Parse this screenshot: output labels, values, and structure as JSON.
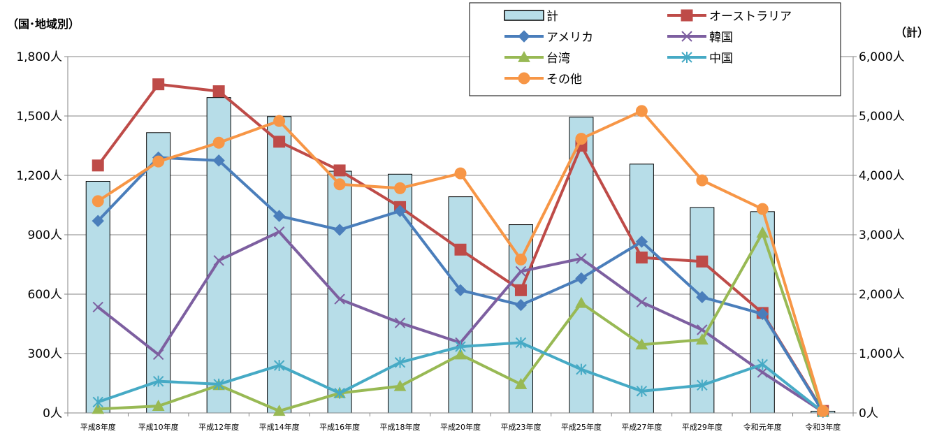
{
  "chart_data": {
    "type": "bar+line",
    "categories": [
      "平成8年度",
      "平成10年度",
      "平成12年度",
      "平成14年度",
      "平成16年度",
      "平成18年度",
      "平成20年度",
      "平成23年度",
      "平成25年度",
      "平成27年度",
      "平成29年度",
      "令和元年度",
      "令和3年度"
    ],
    "left_axis": {
      "title": "（国･地域別）",
      "ylim": [
        0,
        1800
      ],
      "ticks": [
        0,
        300,
        600,
        900,
        1200,
        1500,
        1800
      ],
      "tick_labels": [
        "0人",
        "300人",
        "600人",
        "900人",
        "1,200人",
        "1,500人",
        "1,800人"
      ]
    },
    "right_axis": {
      "title": "（計）",
      "ylim": [
        0,
        6000
      ],
      "ticks": [
        0,
        1000,
        2000,
        3000,
        4000,
        5000,
        6000
      ],
      "tick_labels": [
        "0人",
        "1,000人",
        "2,000人",
        "3,000人",
        "4,000人",
        "5,000人",
        "6,000人"
      ]
    },
    "bar_series": {
      "name": "計",
      "axis": "right",
      "color": "#b7dde8",
      "values": [
        3900,
        4720,
        5310,
        4990,
        4070,
        4020,
        3640,
        3170,
        4980,
        4190,
        3460,
        3390,
        30
      ]
    },
    "series": [
      {
        "name": "オーストラリア",
        "color": "#be4b48",
        "marker": "square",
        "values": [
          1250,
          1660,
          1625,
          1370,
          1225,
          1040,
          825,
          620,
          1350,
          785,
          765,
          505,
          10
        ]
      },
      {
        "name": "アメリカ",
        "color": "#4a7ebb",
        "marker": "diamond",
        "values": [
          970,
          1290,
          1275,
          995,
          925,
          1020,
          620,
          545,
          680,
          865,
          585,
          500,
          5
        ]
      },
      {
        "name": "韓国",
        "color": "#7d5fa0",
        "marker": "x",
        "values": [
          535,
          295,
          770,
          915,
          575,
          455,
          355,
          715,
          780,
          560,
          420,
          205,
          5
        ]
      },
      {
        "name": "台湾",
        "color": "#98b954",
        "marker": "triangle",
        "values": [
          20,
          35,
          140,
          10,
          100,
          135,
          295,
          145,
          555,
          345,
          370,
          910,
          5
        ]
      },
      {
        "name": "中国",
        "color": "#46aac5",
        "marker": "star",
        "values": [
          55,
          160,
          145,
          240,
          100,
          255,
          335,
          355,
          220,
          110,
          140,
          245,
          5
        ]
      },
      {
        "name": "その他",
        "color": "#f79646",
        "marker": "circle",
        "values": [
          1070,
          1270,
          1365,
          1475,
          1155,
          1135,
          1210,
          775,
          1385,
          1525,
          1175,
          1030,
          10
        ]
      }
    ],
    "legend": [
      "計",
      "オーストラリア",
      "アメリカ",
      "韓国",
      "台湾",
      "中国",
      "その他"
    ]
  }
}
